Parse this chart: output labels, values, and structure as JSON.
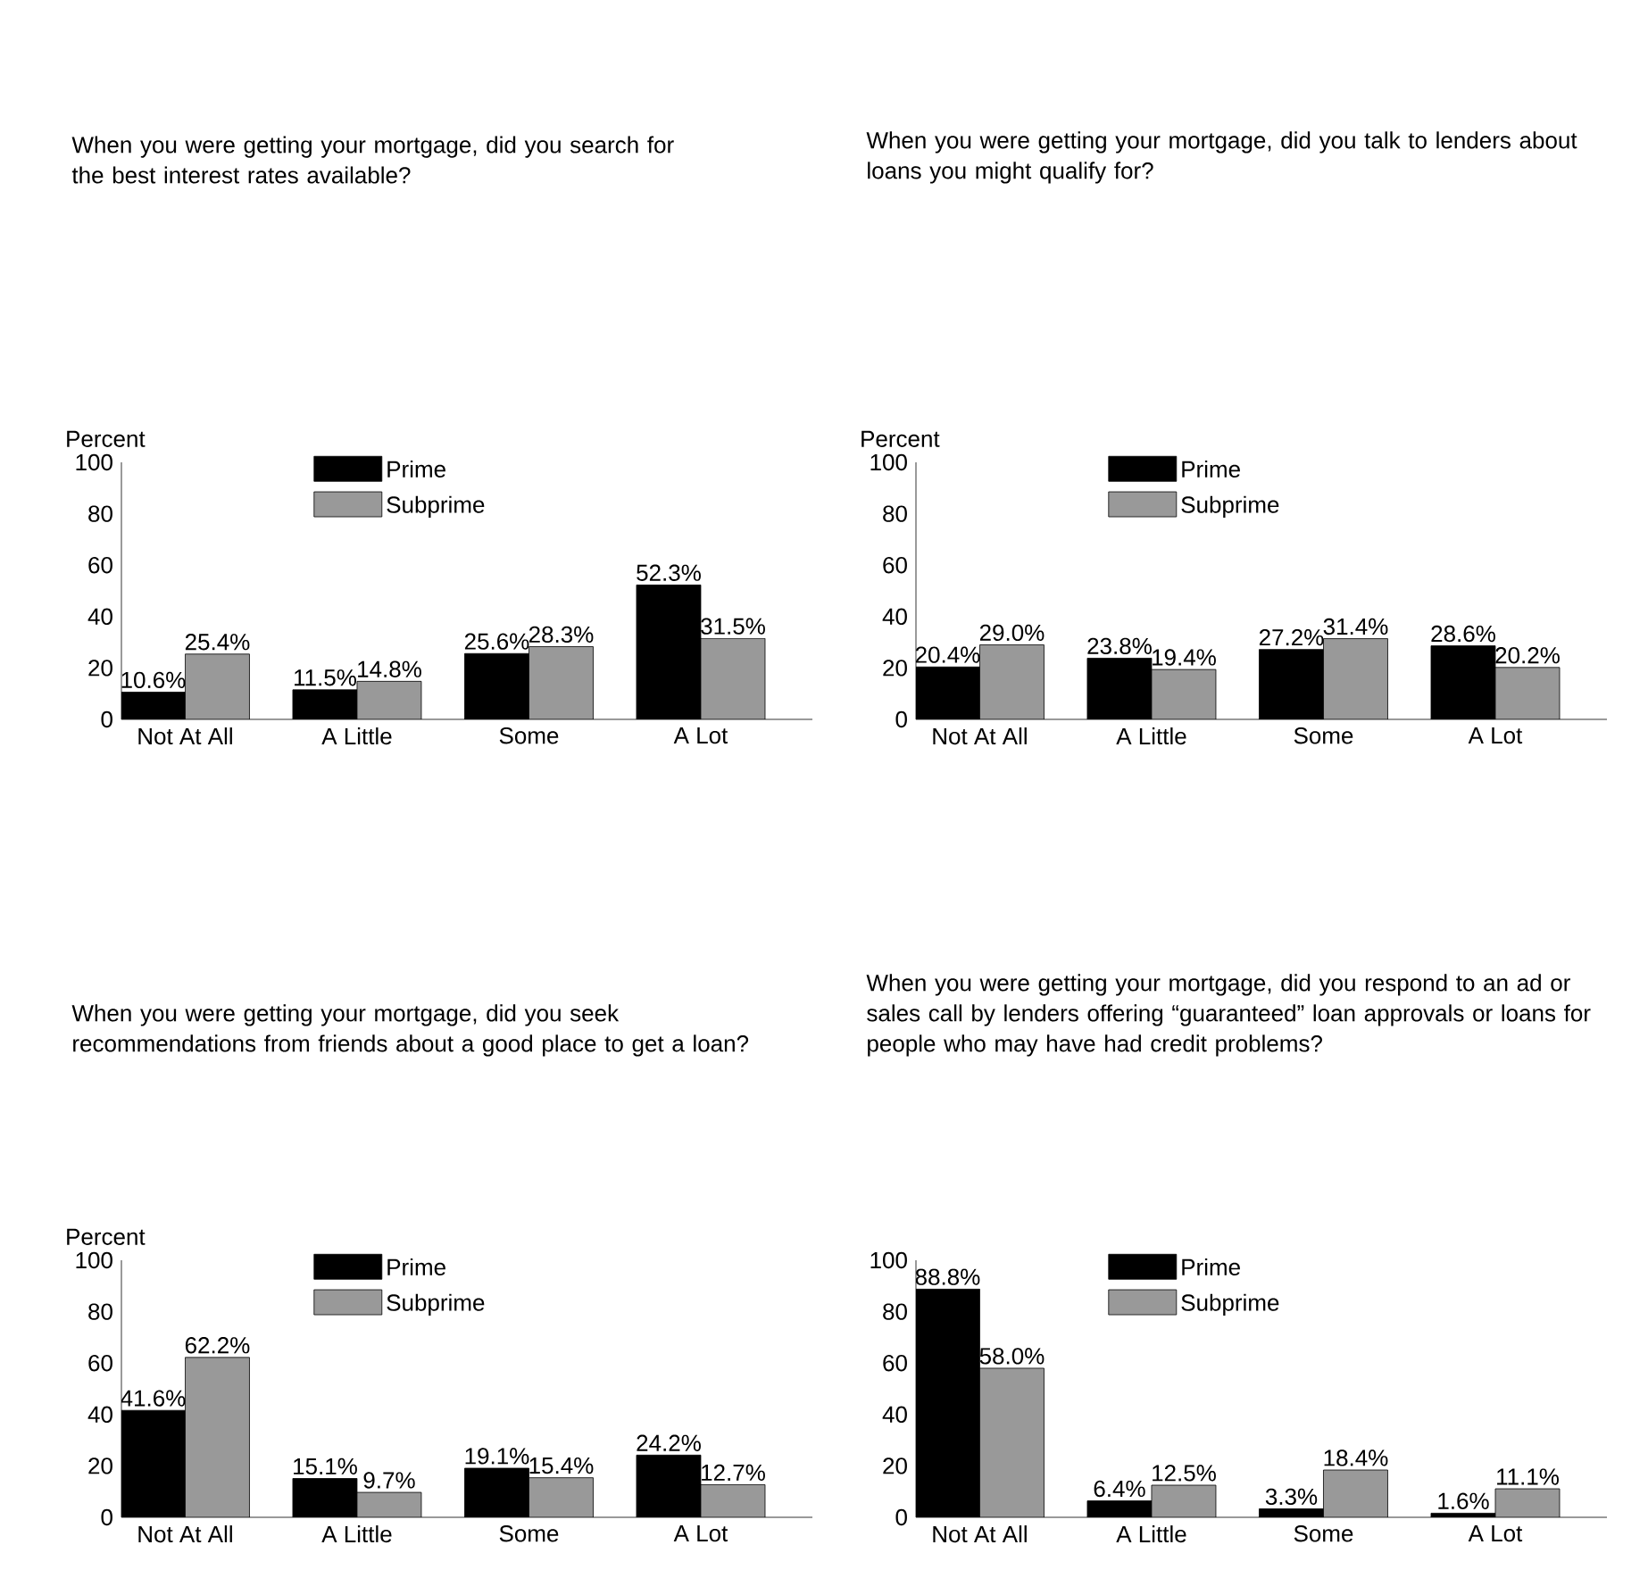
{
  "chart_data": [
    {
      "type": "bar",
      "title": "When you were getting your mortgage, did you search for the best interest rates available?",
      "ylabel": "Percent",
      "categories": [
        "Not At All",
        "A Little",
        "Some",
        "A Lot"
      ],
      "ylim": [
        0,
        100
      ],
      "yticks": [
        0,
        20,
        40,
        60,
        80,
        100
      ],
      "legend": "top",
      "series": [
        {
          "name": "Prime",
          "color": "#000000",
          "values": [
            10.6,
            11.5,
            25.6,
            52.3
          ],
          "value_labels": [
            "10.6%",
            "11.5%",
            "25.6%",
            "52.3%"
          ]
        },
        {
          "name": "Subprime",
          "color": "#999999",
          "values": [
            25.4,
            14.8,
            28.3,
            31.5
          ],
          "value_labels": [
            "25.4%",
            "14.8%",
            "28.3%",
            "31.5%"
          ]
        }
      ]
    },
    {
      "type": "bar",
      "title": "When you were getting your mortgage, did you talk to lenders about loans you might qualify for?",
      "ylabel": "Percent",
      "categories": [
        "Not At All",
        "A Little",
        "Some",
        "A Lot"
      ],
      "ylim": [
        0,
        100
      ],
      "yticks": [
        0,
        20,
        40,
        60,
        80,
        100
      ],
      "legend": "top",
      "series": [
        {
          "name": "Prime",
          "color": "#000000",
          "values": [
            20.4,
            23.8,
            27.2,
            28.6
          ],
          "value_labels": [
            "20.4%",
            "23.8%",
            "27.2%",
            "28.6%"
          ]
        },
        {
          "name": "Subprime",
          "color": "#999999",
          "values": [
            29.0,
            19.4,
            31.4,
            20.2
          ],
          "value_labels": [
            "29.0%",
            "19.4%",
            "31.4%",
            "20.2%"
          ]
        }
      ]
    },
    {
      "type": "bar",
      "title": "When you were getting your mortgage, did you seek recommendations from friends about a good place to get a loan?",
      "ylabel": "Percent",
      "categories": [
        "Not At All",
        "A Little",
        "Some",
        "A Lot"
      ],
      "ylim": [
        0,
        100
      ],
      "yticks": [
        0,
        20,
        40,
        60,
        80,
        100
      ],
      "legend": "top",
      "series": [
        {
          "name": "Prime",
          "color": "#000000",
          "values": [
            41.6,
            15.1,
            19.1,
            24.2
          ],
          "value_labels": [
            "41.6%",
            "15.1%",
            "19.1%",
            "24.2%"
          ]
        },
        {
          "name": "Subprime",
          "color": "#999999",
          "values": [
            62.2,
            9.7,
            15.4,
            12.7
          ],
          "value_labels": [
            "62.2%",
            "9.7%",
            "15.4%",
            "12.7%"
          ]
        }
      ]
    },
    {
      "type": "bar",
      "title": "When you were getting your mortgage, did you respond to an ad or sales call by lenders offering “guaranteed” loan approvals or loans for people who may have had credit problems?",
      "categories": [
        "Not At All",
        "A Little",
        "Some",
        "A Lot"
      ],
      "ylim": [
        0,
        100
      ],
      "yticks": [
        0,
        20,
        40,
        60,
        80,
        100
      ],
      "legend": "top",
      "series": [
        {
          "name": "Prime",
          "color": "#000000",
          "values": [
            88.8,
            6.4,
            3.3,
            1.6
          ],
          "value_labels": [
            "88.8%",
            "6.4%",
            "3.3%",
            "1.6%"
          ]
        },
        {
          "name": "Subprime",
          "color": "#999999",
          "values": [
            58.0,
            12.5,
            18.4,
            11.1
          ],
          "value_labels": [
            "58.0%",
            "12.5%",
            "18.4%",
            "11.1%"
          ]
        }
      ]
    }
  ]
}
